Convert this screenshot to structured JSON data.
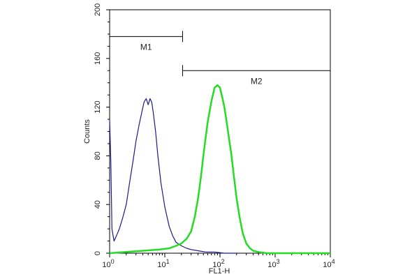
{
  "chart_data": {
    "type": "line",
    "xlabel": "FL1-H",
    "ylabel": "Counts",
    "x_scale": "log",
    "xlim": [
      1,
      10000
    ],
    "ylim": [
      0,
      200
    ],
    "x_ticks": [
      {
        "value": 1,
        "base": "10",
        "exp": "0"
      },
      {
        "value": 10,
        "base": "10",
        "exp": "1"
      },
      {
        "value": 100,
        "base": "10",
        "exp": "2"
      },
      {
        "value": 1000,
        "base": "10",
        "exp": "3"
      },
      {
        "value": 10000,
        "base": "10",
        "exp": "4"
      }
    ],
    "y_ticks": [
      "0",
      "40",
      "80",
      "120",
      "160",
      "200"
    ],
    "grid": false,
    "gates": [
      {
        "label": "M1",
        "x_start": 1,
        "x_end": 21,
        "y": 178
      },
      {
        "label": "M2",
        "x_start": 21,
        "x_end": 10000,
        "y": 150
      }
    ],
    "series": [
      {
        "color": "#1a1a8c",
        "x": [
          1,
          1.05,
          1.1,
          1.2,
          1.35,
          1.5,
          1.7,
          2.0,
          2.3,
          2.7,
          3.0,
          3.4,
          3.8,
          4.2,
          4.6,
          5.0,
          5.4,
          5.8,
          6.2,
          6.8,
          7.5,
          8.5,
          10,
          12,
          14,
          16,
          20,
          25,
          30,
          40,
          55,
          80,
          120,
          200
        ],
        "y": [
          110,
          75,
          20,
          10,
          15,
          20,
          28,
          40,
          58,
          78,
          92,
          105,
          115,
          124,
          127,
          122,
          127,
          124,
          115,
          100,
          80,
          58,
          38,
          22,
          14,
          9,
          6,
          4,
          3,
          2,
          1,
          1,
          0,
          0
        ]
      },
      {
        "color": "#22dd22",
        "x": [
          1,
          2,
          4,
          8,
          12,
          16,
          20,
          25,
          30,
          35,
          40,
          45,
          50,
          55,
          60,
          70,
          80,
          90,
          100,
          110,
          120,
          130,
          140,
          160,
          180,
          200,
          230,
          260,
          300,
          350,
          400,
          500,
          700,
          1000,
          10000
        ],
        "y": [
          0,
          1,
          2,
          3,
          4,
          6,
          8,
          12,
          18,
          30,
          45,
          62,
          80,
          95,
          108,
          125,
          136,
          138,
          136,
          128,
          120,
          110,
          100,
          82,
          62,
          45,
          28,
          16,
          8,
          4,
          2,
          1,
          0,
          0,
          0
        ]
      }
    ]
  }
}
